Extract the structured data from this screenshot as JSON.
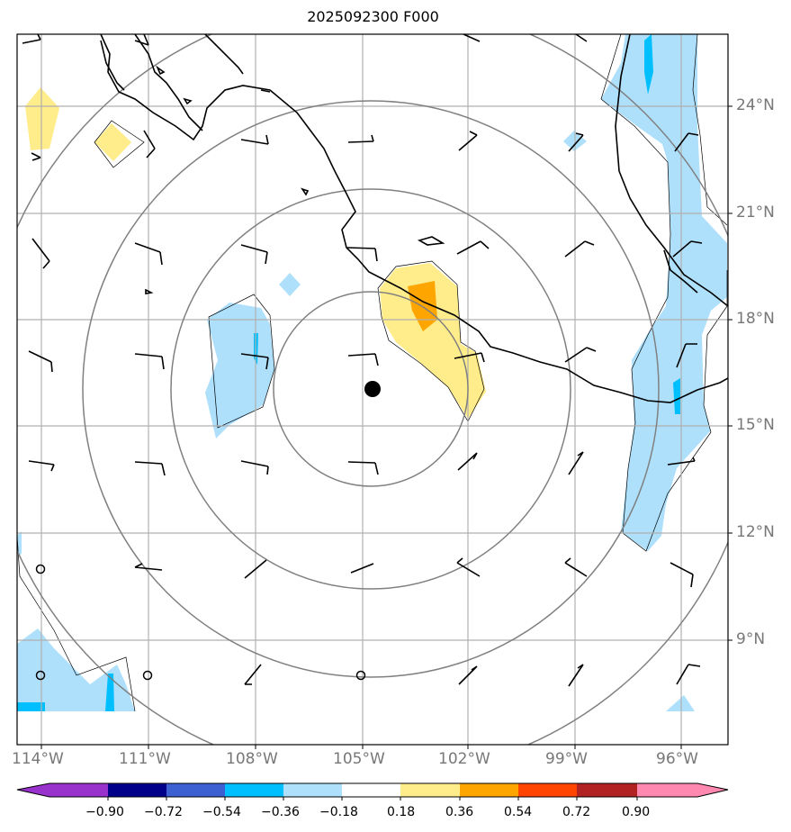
{
  "title": "2025092300 F000",
  "lat_labels": [
    "24°N",
    "21°N",
    "18°N",
    "15°N",
    "12°N",
    "9°N"
  ],
  "lon_labels": [
    "114°W",
    "111°W",
    "108°W",
    "105°W",
    "102°W",
    "99°W",
    "96°W"
  ],
  "colorbar": {
    "ticks": [
      "−0.90",
      "−0.72",
      "−0.54",
      "−0.36",
      "−0.18",
      "0.18",
      "0.36",
      "0.54",
      "0.72",
      "0.90"
    ],
    "colors": [
      "#9932cc",
      "#00008b",
      "#3c5fd2",
      "#00bfff",
      "#aee0fc",
      "#ffffff",
      "#ffec8b",
      "#ffa500",
      "#ff4500",
      "#b22222",
      "#ff88b0"
    ]
  },
  "storm_center": {
    "lon": -104.7,
    "lat": 16.0
  },
  "range_rings": "concentric circles around storm center"
}
